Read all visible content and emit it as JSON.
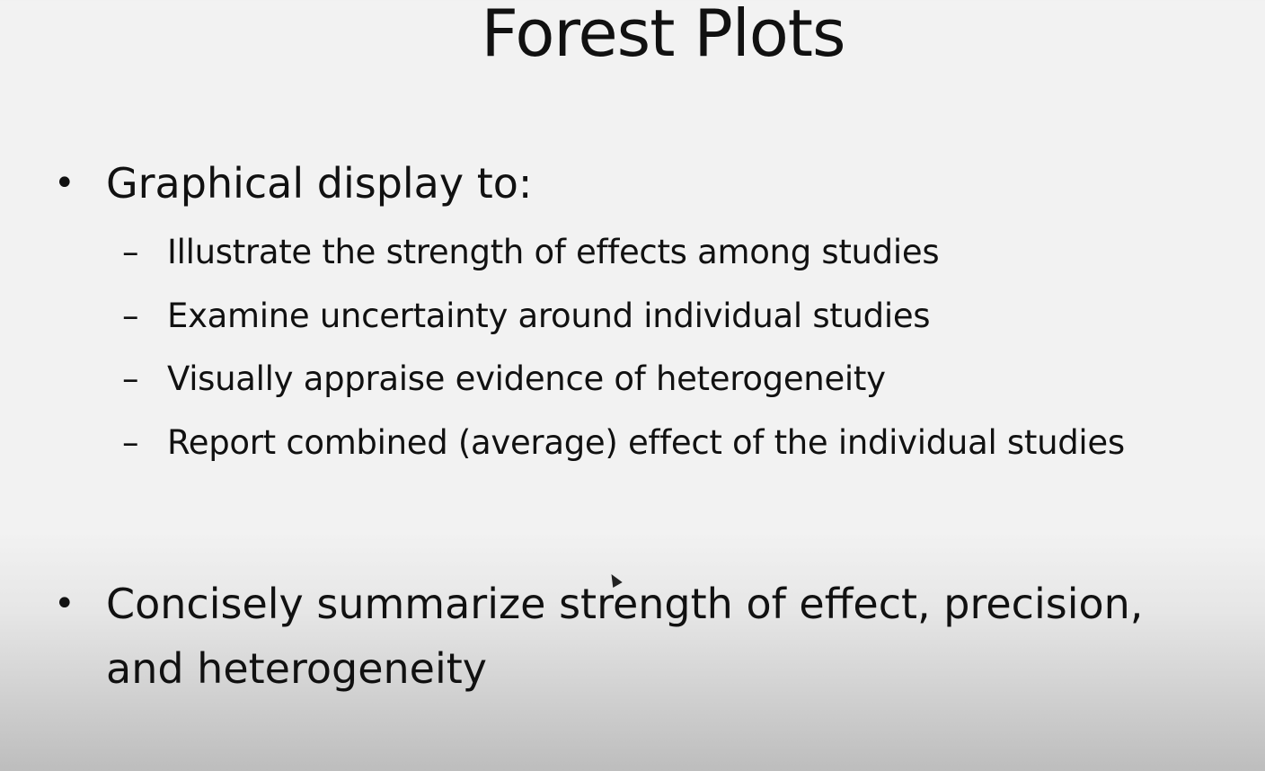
{
  "slide": {
    "title": "Forest Plots",
    "bullets": [
      {
        "dot": "•",
        "text": "Graphical display to:",
        "sub_items": [
          {
            "dash": "–",
            "text": "Illustrate the strength of effects among studies"
          },
          {
            "dash": "–",
            "text": "Examine uncertainty around individual studies"
          },
          {
            "dash": "–",
            "text": "Visually appraise evidence of heterogeneity"
          },
          {
            "dash": "–",
            "text": "Report combined (average) effect of the individual studies"
          }
        ]
      },
      {
        "dot": "•",
        "text": "Concisely summarize strength of effect, precision, and heterogeneity"
      }
    ]
  },
  "colors": {
    "text": "#111111",
    "background_top": "#f2f2f2",
    "background_bottom": "#bdbdbd"
  }
}
